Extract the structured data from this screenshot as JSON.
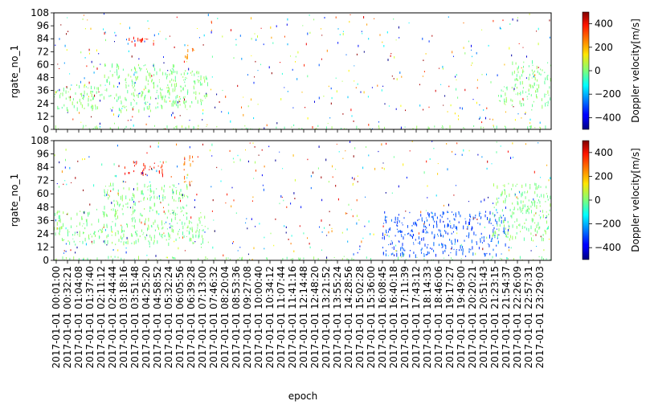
{
  "chart_data": [
    {
      "type": "heatmap",
      "panel": "top",
      "ylabel": "rgate_no_1",
      "ylim": [
        0,
        108
      ],
      "yticks": [
        0,
        12,
        24,
        36,
        48,
        60,
        72,
        84,
        96,
        108
      ],
      "colorbar": {
        "label": "Doppler velocity[m/s]",
        "ticks": [
          400,
          200,
          0,
          -200,
          -400
        ],
        "range": [
          -500,
          500
        ],
        "colormap": "jet"
      },
      "bands": [
        {
          "x0": 0.0,
          "x1": 0.27,
          "y0": 18,
          "y1": 42,
          "value": 0
        },
        {
          "x0": 0.1,
          "x1": 0.25,
          "y0": 42,
          "y1": 62,
          "value": 0
        },
        {
          "x0": 0.22,
          "x1": 0.31,
          "y0": 25,
          "y1": 55,
          "value": 0
        },
        {
          "x0": 0.14,
          "x1": 0.2,
          "y0": 79,
          "y1": 87,
          "value": 350
        },
        {
          "x0": 0.26,
          "x1": 0.28,
          "y0": 65,
          "y1": 80,
          "value": 250
        },
        {
          "x0": 0.89,
          "x1": 1.0,
          "y0": 22,
          "y1": 42,
          "value": 0
        },
        {
          "x0": 0.92,
          "x1": 1.0,
          "y0": 42,
          "y1": 65,
          "value": 0
        },
        {
          "x0": 0.0,
          "x1": 1.0,
          "y0": 0,
          "y1": 4,
          "value": 0
        }
      ]
    },
    {
      "type": "heatmap",
      "panel": "bottom",
      "ylabel": "rgate_no_1",
      "xlabel": "epoch",
      "ylim": [
        0,
        108
      ],
      "yticks": [
        0,
        12,
        24,
        36,
        48,
        60,
        72,
        84,
        96,
        108
      ],
      "colorbar": {
        "label": "Doppler velocity[m/s]",
        "ticks": [
          400,
          200,
          0,
          -200,
          -400
        ],
        "range": [
          -500,
          500
        ],
        "colormap": "jet"
      },
      "xticks": [
        "2017-01-01 00:01:00",
        "2017-01-01 00:32:21",
        "2017-01-01 01:04:08",
        "2017-01-01 01:37:40",
        "2017-01-01 02:11:12",
        "2017-01-01 02:44:44",
        "2017-01-01 03:18:16",
        "2017-01-01 03:51:48",
        "2017-01-01 04:25:20",
        "2017-01-01 04:58:52",
        "2017-01-01 05:32:24",
        "2017-01-01 06:05:56",
        "2017-01-01 06:39:28",
        "2017-01-01 07:13:00",
        "2017-01-01 07:46:32",
        "2017-01-01 08:20:04",
        "2017-01-01 08:53:36",
        "2017-01-01 09:27:08",
        "2017-01-01 10:00:40",
        "2017-01-01 10:34:12",
        "2017-01-01 11:07:44",
        "2017-01-01 11:41:16",
        "2017-01-01 12:14:48",
        "2017-01-01 12:48:20",
        "2017-01-01 13:21:52",
        "2017-01-01 13:55:24",
        "2017-01-01 14:28:56",
        "2017-01-01 15:02:28",
        "2017-01-01 15:36:00",
        "2017-01-01 16:08:45",
        "2017-01-01 16:40:18",
        "2017-01-01 17:11:39",
        "2017-01-01 17:43:12",
        "2017-01-01 18:14:33",
        "2017-01-01 18:46:06",
        "2017-01-01 19:17:27",
        "2017-01-01 19:49:00",
        "2017-01-01 20:20:21",
        "2017-01-01 20:51:43",
        "2017-01-01 21:23:15",
        "2017-01-01 21:54:37",
        "2017-01-01 22:26:09",
        "2017-01-01 22:57:31",
        "2017-01-01 23:29:03"
      ],
      "bands": [
        {
          "x0": 0.0,
          "x1": 0.31,
          "y0": 15,
          "y1": 45,
          "value": 0
        },
        {
          "x0": 0.1,
          "x1": 0.27,
          "y0": 45,
          "y1": 70,
          "value": 0
        },
        {
          "x0": 0.14,
          "x1": 0.22,
          "y0": 78,
          "y1": 90,
          "value": 350
        },
        {
          "x0": 0.26,
          "x1": 0.28,
          "y0": 70,
          "y1": 95,
          "value": 250
        },
        {
          "x0": 0.66,
          "x1": 0.91,
          "y0": 5,
          "y1": 45,
          "value": -300
        },
        {
          "x0": 0.88,
          "x1": 1.0,
          "y0": 20,
          "y1": 70,
          "value": 0
        },
        {
          "x0": 0.0,
          "x1": 1.0,
          "y0": 0,
          "y1": 4,
          "value": 0
        }
      ]
    }
  ]
}
